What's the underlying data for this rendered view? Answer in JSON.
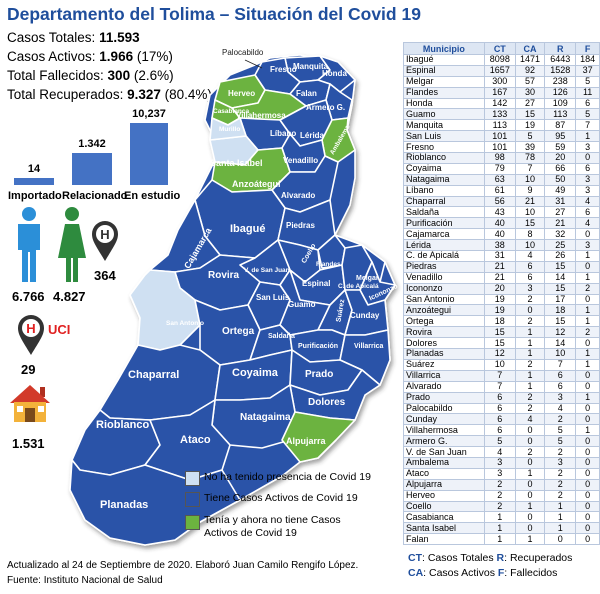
{
  "title": "Departamento del Tolima – Situación del Covid 19",
  "stats": [
    {
      "label": "Casos Totales: ",
      "value": "11.593",
      "extra": ""
    },
    {
      "label": "Casos Activos: ",
      "value": "1.966",
      "extra": " (17%)"
    },
    {
      "label": "Total Fallecidos: ",
      "value": "300",
      "extra": " (2.6%)"
    },
    {
      "label": "Total Recuperados: ",
      "value": "9.327",
      "extra": " (80.4%)"
    }
  ],
  "bars": [
    {
      "label": "Importado",
      "value": 14,
      "value_text": "14"
    },
    {
      "label": "Relacionado",
      "value": 1342,
      "value_text": "1.342"
    },
    {
      "label": "En estudio",
      "value": 10237,
      "value_text": "10,237"
    }
  ],
  "icons": {
    "men": "6.766",
    "women": "4.827",
    "hospital": "364",
    "uci_label": "UCI",
    "uci": "29",
    "home": "1.531"
  },
  "colors": {
    "active": "#2a52a8",
    "none": "#cfe0f2",
    "recovered": "#6cb33f",
    "accent": "#1f4e9c"
  },
  "map_labels": [
    {
      "text": "Palocabildo",
      "dark": true
    },
    {
      "text": "Manquita"
    },
    {
      "text": "Fresno"
    },
    {
      "text": "Honda"
    },
    {
      "text": "Herveo"
    },
    {
      "text": "Falan"
    },
    {
      "text": "Casabianca"
    },
    {
      "text": "Villahermosa"
    },
    {
      "text": "Armero G."
    },
    {
      "text": "Líbano"
    },
    {
      "text": "Lérida"
    },
    {
      "text": "Ambalema"
    },
    {
      "text": "Santa Isabel"
    },
    {
      "text": "Venadillo"
    },
    {
      "text": "Murillo"
    },
    {
      "text": "Anzoátegui"
    },
    {
      "text": "Alvarado"
    },
    {
      "text": "Ibagué"
    },
    {
      "text": "Piedras"
    },
    {
      "text": "Cajamarca"
    },
    {
      "text": "Coello"
    },
    {
      "text": "Flandes"
    },
    {
      "text": "Rovira"
    },
    {
      "text": "V. de San Juan"
    },
    {
      "text": "Espinal"
    },
    {
      "text": "C. de Apicalá"
    },
    {
      "text": "Melgar"
    },
    {
      "text": "Icononzo"
    },
    {
      "text": "San Luis"
    },
    {
      "text": "Guamo"
    },
    {
      "text": "Suárez"
    },
    {
      "text": "Cunday"
    },
    {
      "text": "San Antonio"
    },
    {
      "text": "Ortega"
    },
    {
      "text": "Saldaña"
    },
    {
      "text": "Purificación"
    },
    {
      "text": "Villarrica"
    },
    {
      "text": "Chaparral"
    },
    {
      "text": "Coyaima"
    },
    {
      "text": "Prado"
    },
    {
      "text": "Dolores"
    },
    {
      "text": "Rioblanco"
    },
    {
      "text": "Natagaima"
    },
    {
      "text": "Ataco"
    },
    {
      "text": "Alpujarra"
    },
    {
      "text": "Planadas"
    }
  ],
  "legend": [
    {
      "key": "none",
      "text": "No ha tenido presencia de Covid 19"
    },
    {
      "key": "active",
      "text": "Tiene Casos Activos de Covid 19"
    },
    {
      "key": "recovered",
      "text": "Tenía y ahora no tiene Casos Activos de Covid 19"
    }
  ],
  "footer": {
    "line1": "Actualizado al 24 de Septiembre de 2020. Elaboró Juan Camilo Rengifo López.",
    "line2": "Fuente: Instituto Nacional de Salud"
  },
  "table": {
    "headers": [
      "Municipio",
      "CT",
      "CA",
      "R",
      "F"
    ],
    "rows": [
      [
        "Ibagué",
        "8098",
        "1471",
        "6443",
        "184"
      ],
      [
        "Espinal",
        "1657",
        "92",
        "1528",
        "37"
      ],
      [
        "Melgar",
        "300",
        "57",
        "238",
        "5"
      ],
      [
        "Flandes",
        "167",
        "30",
        "126",
        "11"
      ],
      [
        "Honda",
        "142",
        "27",
        "109",
        "6"
      ],
      [
        "Guamo",
        "133",
        "15",
        "113",
        "5"
      ],
      [
        "Manquita",
        "113",
        "19",
        "87",
        "7"
      ],
      [
        "San Luis",
        "101",
        "5",
        "95",
        "1"
      ],
      [
        "Fresno",
        "101",
        "39",
        "59",
        "3"
      ],
      [
        "Rioblanco",
        "98",
        "78",
        "20",
        "0"
      ],
      [
        "Coyaima",
        "79",
        "7",
        "66",
        "6"
      ],
      [
        "Natagaima",
        "63",
        "10",
        "50",
        "3"
      ],
      [
        "Líbano",
        "61",
        "9",
        "49",
        "3"
      ],
      [
        "Chaparral",
        "56",
        "21",
        "31",
        "4"
      ],
      [
        "Saldaña",
        "43",
        "10",
        "27",
        "6"
      ],
      [
        "Purificación",
        "40",
        "15",
        "21",
        "4"
      ],
      [
        "Cajamarca",
        "40",
        "8",
        "32",
        "0"
      ],
      [
        "Lérida",
        "38",
        "10",
        "25",
        "3"
      ],
      [
        "C. de Apicalá",
        "31",
        "4",
        "26",
        "1"
      ],
      [
        "Piedras",
        "21",
        "6",
        "15",
        "0"
      ],
      [
        "Venadillo",
        "21",
        "6",
        "14",
        "1"
      ],
      [
        "Icononzo",
        "20",
        "3",
        "15",
        "2"
      ],
      [
        "San Antonio",
        "19",
        "2",
        "17",
        "0"
      ],
      [
        "Anzoátegui",
        "19",
        "0",
        "18",
        "1"
      ],
      [
        "Ortega",
        "18",
        "2",
        "15",
        "1"
      ],
      [
        "Rovira",
        "15",
        "1",
        "12",
        "2"
      ],
      [
        "Dolores",
        "15",
        "1",
        "14",
        "0"
      ],
      [
        "Planadas",
        "12",
        "1",
        "10",
        "1"
      ],
      [
        "Suárez",
        "10",
        "2",
        "7",
        "1"
      ],
      [
        "Villarrica",
        "7",
        "1",
        "6",
        "0"
      ],
      [
        "Alvarado",
        "7",
        "1",
        "6",
        "0"
      ],
      [
        "Prado",
        "6",
        "2",
        "3",
        "1"
      ],
      [
        "Palocabildo",
        "6",
        "2",
        "4",
        "0"
      ],
      [
        "Cunday",
        "6",
        "4",
        "2",
        "0"
      ],
      [
        "Villahermosa",
        "6",
        "0",
        "5",
        "1"
      ],
      [
        "Armero G.",
        "5",
        "0",
        "5",
        "0"
      ],
      [
        "V. de San Juan",
        "4",
        "2",
        "2",
        "0"
      ],
      [
        "Ambalema",
        "3",
        "0",
        "3",
        "0"
      ],
      [
        "Ataco",
        "3",
        "1",
        "2",
        "0"
      ],
      [
        "Alpujarra",
        "2",
        "0",
        "2",
        "0"
      ],
      [
        "Herveo",
        "2",
        "0",
        "2",
        "0"
      ],
      [
        "Coello",
        "2",
        "1",
        "1",
        "0"
      ],
      [
        "Casabianca",
        "1",
        "0",
        "1",
        "0"
      ],
      [
        "Santa Isabel",
        "1",
        "0",
        "1",
        "0"
      ],
      [
        "Falan",
        "1",
        "1",
        "0",
        "0"
      ]
    ]
  },
  "table_legend": {
    "ct_key": "CT",
    "ct_text": ": Casos Totales ",
    "r_key": "R",
    "r_text": ": Recuperados",
    "ca_key": "CA",
    "ca_text": ": Casos Activos ",
    "f_key": "F",
    "f_text": ": Fallecidos"
  }
}
